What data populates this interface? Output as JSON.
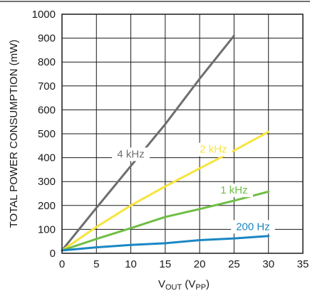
{
  "chart_data": {
    "type": "line",
    "xlabel_main": "V",
    "xlabel_sub1": "OUT",
    "xlabel_mid": " (V",
    "xlabel_sub2": "PP",
    "xlabel_end": ")",
    "ylabel": "TOTAL POWER CONSUMPTION (mW)",
    "xlim": [
      0,
      35
    ],
    "ylim": [
      0,
      1000
    ],
    "x_ticks": [
      0,
      5,
      10,
      15,
      20,
      25,
      30,
      35
    ],
    "y_ticks": [
      0,
      100,
      200,
      300,
      400,
      500,
      600,
      700,
      800,
      900,
      1000
    ],
    "grid": true,
    "series": [
      {
        "name": "4 kHz",
        "color": "#6d6e70",
        "x": [
          0,
          5,
          10,
          15,
          20,
          25
        ],
        "y": [
          12,
          190,
          365,
          540,
          730,
          910
        ]
      },
      {
        "name": "2 kHz",
        "color": "#f7e43c",
        "x": [
          0,
          5,
          10,
          15,
          20,
          25,
          30
        ],
        "y": [
          12,
          110,
          200,
          280,
          355,
          430,
          508
        ]
      },
      {
        "name": "1 kHz",
        "color": "#6fbe44",
        "x": [
          0,
          5,
          10,
          15,
          20,
          25,
          30
        ],
        "y": [
          12,
          60,
          105,
          152,
          185,
          220,
          258
        ]
      },
      {
        "name": "200 Hz",
        "color": "#1a87c5",
        "x": [
          0,
          5,
          10,
          15,
          20,
          25,
          30
        ],
        "y": [
          12,
          25,
          35,
          42,
          55,
          62,
          72
        ]
      }
    ]
  }
}
